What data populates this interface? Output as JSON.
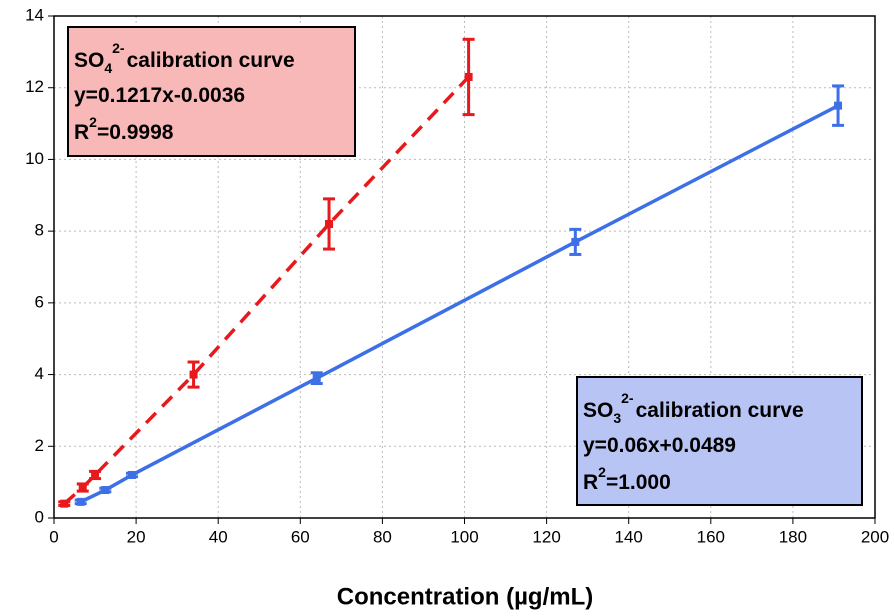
{
  "chart_data": {
    "type": "scatter",
    "xlabel": "Concentration (µg/mL)",
    "xlim": [
      0,
      200
    ],
    "xticks": [
      0,
      20,
      40,
      60,
      80,
      100,
      120,
      140,
      160,
      180,
      200
    ],
    "ylim": [
      0,
      14
    ],
    "yticks": [
      0,
      2,
      4,
      6,
      8,
      10,
      12,
      14
    ],
    "grid": true,
    "series": [
      {
        "color": "#e8191c",
        "line_style": "dashed",
        "x": [
          2.5,
          7,
          10,
          34,
          67,
          101
        ],
        "values": [
          0.4,
          0.85,
          1.2,
          4.0,
          8.2,
          12.3
        ],
        "errors": [
          0.05,
          0.1,
          0.1,
          0.35,
          0.7,
          1.05
        ]
      },
      {
        "color": "#3d6fe6",
        "line_style": "solid",
        "x": [
          6.5,
          12.5,
          19,
          64,
          127,
          191
        ],
        "values": [
          0.45,
          0.78,
          1.2,
          3.9,
          7.7,
          11.5
        ],
        "errors": [
          0.05,
          0.05,
          0.05,
          0.15,
          0.35,
          0.55
        ]
      }
    ],
    "annotations": [
      {
        "fill": "#f8b8b8",
        "species": "SO",
        "sub": "4",
        "charge": "2-",
        "text": "calibration curve",
        "equation": "y=0.1217x-0.0036",
        "r": "R",
        "rsup": "2",
        "rvalue": "=0.9998"
      },
      {
        "fill": "#b8c4f4",
        "species": "SO",
        "sub": "3",
        "charge": "2-",
        "text": "calibration curve",
        "equation": "y=0.06x+0.0489",
        "r": "R",
        "rsup": "2",
        "rvalue": "=1.000"
      }
    ]
  }
}
